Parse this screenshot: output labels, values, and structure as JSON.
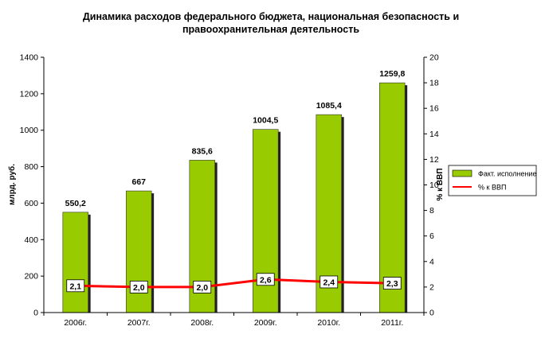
{
  "chart_data": {
    "type": "bar",
    "title_lines": [
      "Динамика расходов федерального бюджета, национальная безопасность и",
      "правоохранительная деятельность"
    ],
    "categories": [
      "2006г.",
      "2007г.",
      "2008г.",
      "2009г.",
      "2010г.",
      "2011г."
    ],
    "series": [
      {
        "name": "Факт. исполнение",
        "type": "bar",
        "axis": "left",
        "values": [
          550.2,
          667,
          835.6,
          1004.5,
          1085.4,
          1259.8
        ],
        "labels": [
          "550,2",
          "667",
          "835,6",
          "1004,5",
          "1085,4",
          "1259,8"
        ],
        "color": "#99cc00"
      },
      {
        "name": "% к ВВП",
        "type": "line",
        "axis": "right",
        "values": [
          2.1,
          2.0,
          2.0,
          2.6,
          2.4,
          2.3
        ],
        "labels": [
          "2,1",
          "2,0",
          "2,0",
          "2,6",
          "2,4",
          "2,3"
        ],
        "color": "#ff0000"
      }
    ],
    "y_left": {
      "label": "млрд. руб.",
      "min": 0,
      "max": 1400,
      "step": 200,
      "ticks": [
        "0",
        "200",
        "400",
        "600",
        "800",
        "1000",
        "1200",
        "1400"
      ]
    },
    "y_right": {
      "label": "% к ВВП",
      "min": 0,
      "max": 20,
      "step": 2,
      "ticks": [
        "0",
        "2",
        "4",
        "6",
        "8",
        "10",
        "12",
        "14",
        "16",
        "18",
        "20"
      ]
    },
    "grid": false,
    "legend_position": "right"
  }
}
